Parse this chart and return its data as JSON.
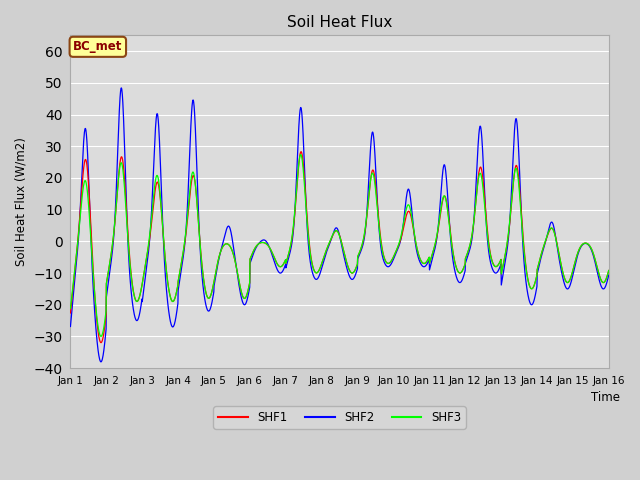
{
  "title": "Soil Heat Flux",
  "ylabel": "Soil Heat Flux (W/m2)",
  "xlabel": "Time",
  "ylim": [
    -40,
    65
  ],
  "xlim": [
    0,
    15
  ],
  "fig_bg_color": "#d0d0d0",
  "plot_bg_color": "#dcdcdc",
  "grid_color": "white",
  "annotation_text": "BC_met",
  "annotation_bg": "#ffff99",
  "annotation_border": "#8b4513",
  "legend_labels": [
    "SHF1",
    "SHF2",
    "SHF3"
  ],
  "line_colors": [
    "red",
    "blue",
    "lime"
  ],
  "xtick_labels": [
    "Jan 1",
    "Jan 2",
    "Jan 3",
    "Jan 4",
    "Jan 5",
    "Jan 6",
    "Jan 7",
    "Jan 8",
    "Jan 9",
    "Jan 10",
    "Jan 11",
    "Jan 12",
    "Jan 13",
    "Jan 14",
    "Jan 15",
    "Jan 16"
  ],
  "xtick_positions": [
    0,
    1,
    2,
    3,
    4,
    5,
    6,
    7,
    8,
    9,
    10,
    11,
    12,
    13,
    14,
    15
  ],
  "figsize": [
    6.4,
    4.8
  ],
  "dpi": 100
}
